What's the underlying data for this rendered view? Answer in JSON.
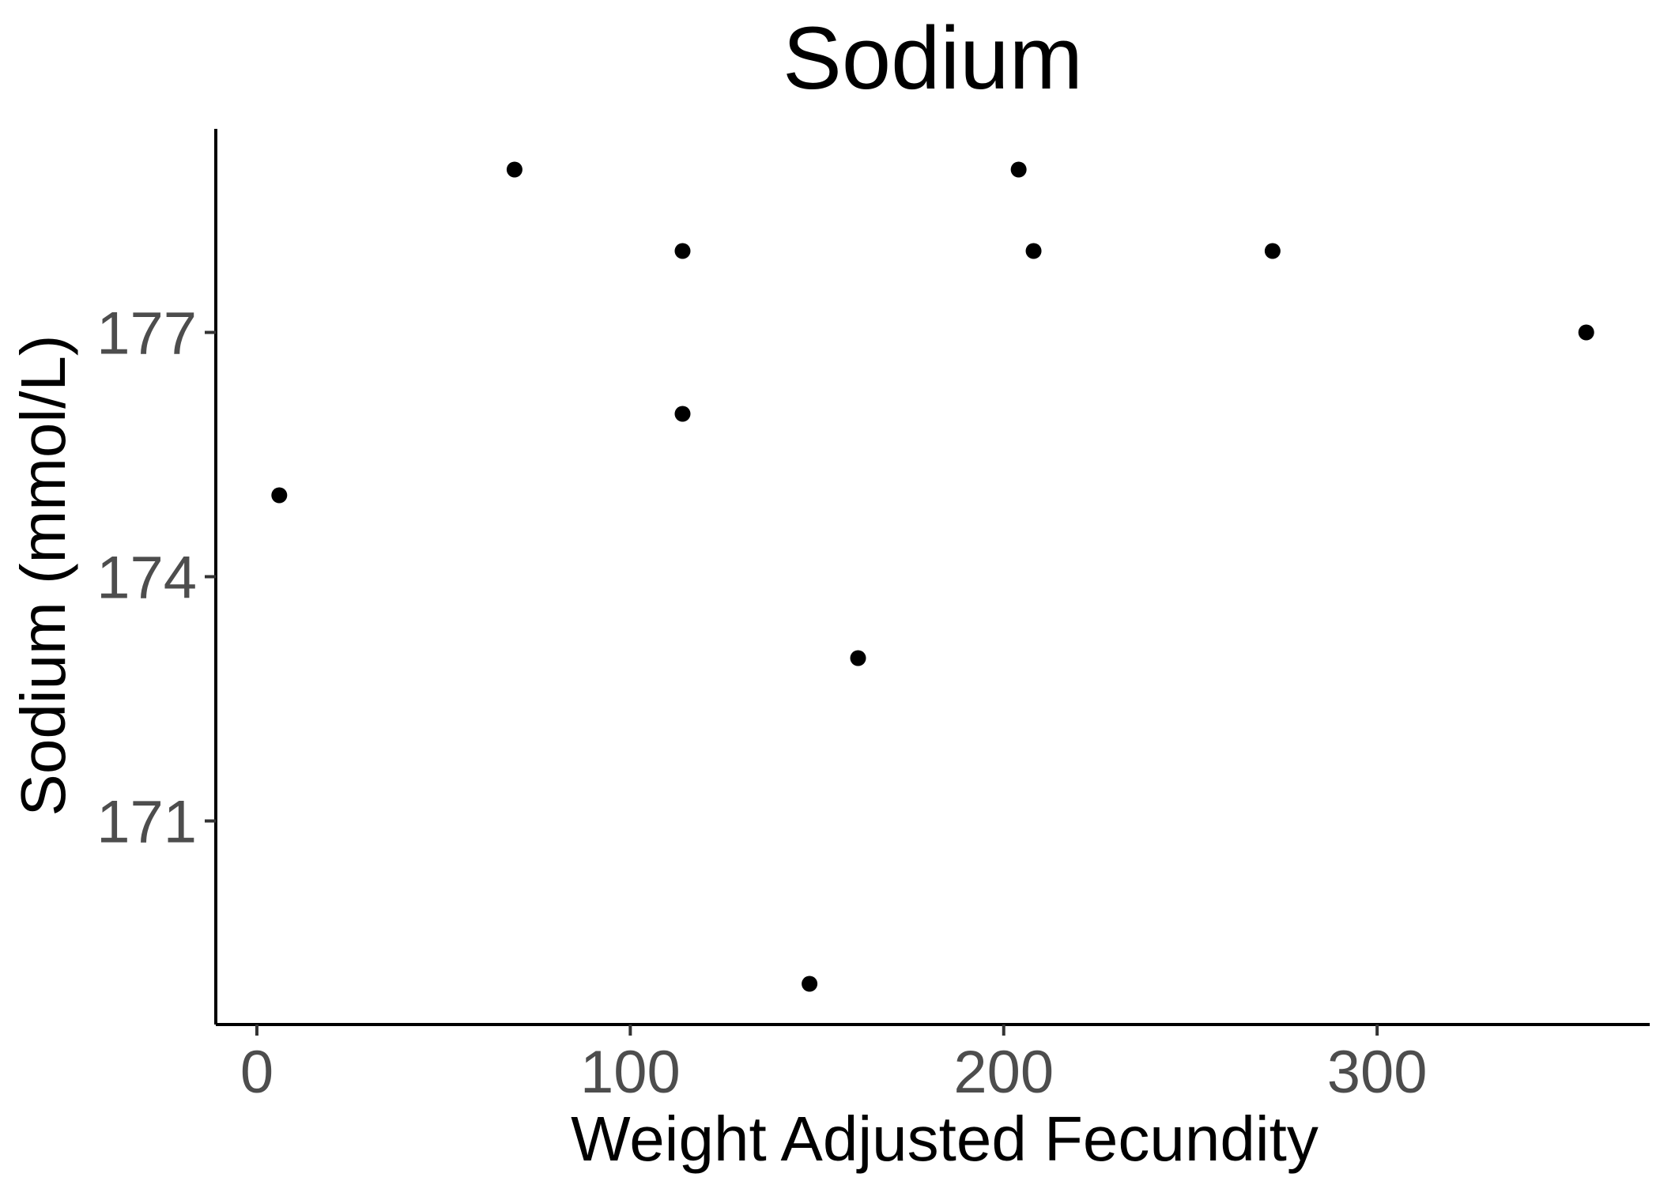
{
  "chart_data": {
    "type": "scatter",
    "title": "Sodium",
    "xlabel": "Weight Adjusted Fecundity",
    "ylabel": "Sodium (mmol/L)",
    "xlim": [
      -11,
      373
    ],
    "ylim": [
      168.5,
      179.5
    ],
    "xticks": [
      0,
      100,
      200,
      300
    ],
    "xtick_labels": [
      "0",
      "100",
      "200",
      "300"
    ],
    "yticks": [
      171,
      174,
      177
    ],
    "ytick_labels": [
      "171",
      "174",
      "177"
    ],
    "grid": false,
    "legend": "none",
    "point_color": "#000000",
    "points": [
      {
        "x": 6,
        "y": 175
      },
      {
        "x": 69,
        "y": 179
      },
      {
        "x": 114,
        "y": 178
      },
      {
        "x": 114,
        "y": 176
      },
      {
        "x": 148,
        "y": 169
      },
      {
        "x": 161,
        "y": 173
      },
      {
        "x": 204,
        "y": 179
      },
      {
        "x": 208,
        "y": 178
      },
      {
        "x": 272,
        "y": 178
      },
      {
        "x": 356,
        "y": 177
      }
    ]
  }
}
